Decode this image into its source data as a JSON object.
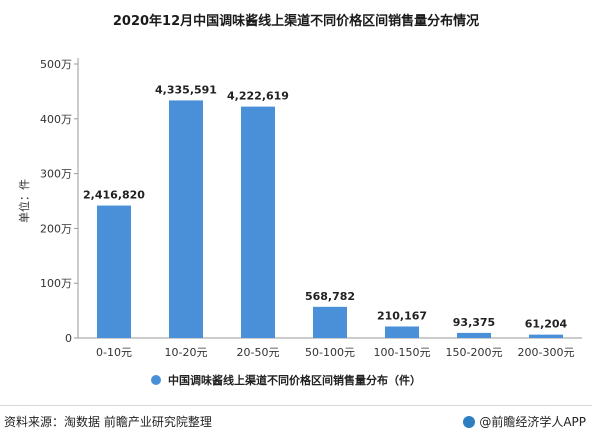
{
  "colors": {
    "bar": "#4a90d9",
    "axis_text": "#333333",
    "grid": "#dddddd",
    "label": "#222222"
  },
  "footer": {
    "source": "资料来源：淘数据 前瞻产业研究院整理",
    "brand": "@前瞻经济学人APP"
  },
  "chart_data": {
    "type": "bar",
    "title": "2020年12月中国调味酱线上渠道不同价格区间销售量分布情况",
    "ylabel": "单位：件",
    "xlabel": "",
    "categories": [
      "0-10元",
      "10-20元",
      "20-50元",
      "50-100元",
      "100-150元",
      "150-200元",
      "200-300元"
    ],
    "series": [
      {
        "name": "中国调味酱线上渠道不同价格区间销售量分布（件）",
        "values": [
          2416820,
          4335591,
          4222619,
          568782,
          210167,
          93375,
          61204
        ]
      }
    ],
    "data_labels": [
      "2,416,820",
      "4,335,591",
      "4,222,619",
      "568,782",
      "210,167",
      "93,375",
      "61,204"
    ],
    "ylim": [
      0,
      5000000
    ],
    "yticks": [
      0,
      1000000,
      2000000,
      3000000,
      4000000,
      5000000
    ],
    "ytick_labels": [
      "0",
      "100万",
      "200万",
      "300万",
      "400万",
      "500万"
    ],
    "grid": false,
    "legend": "bottom"
  }
}
